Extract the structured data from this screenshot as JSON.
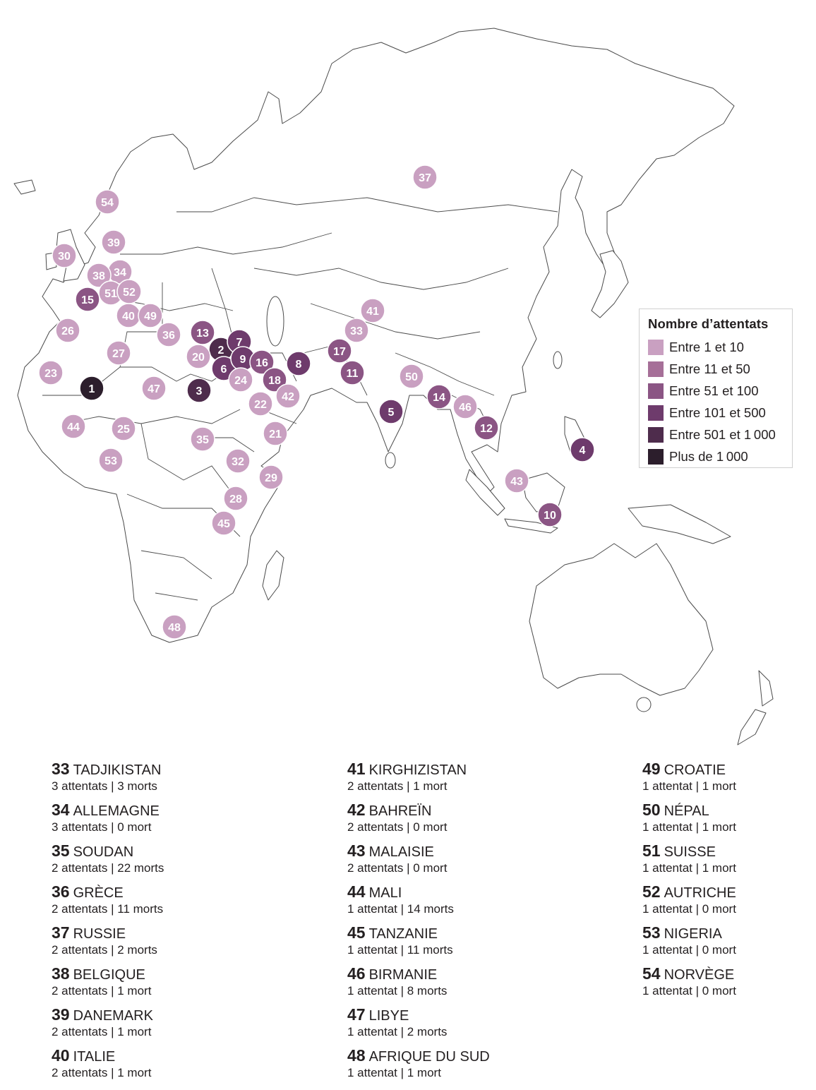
{
  "colors": {
    "c1": "#c9a0c1",
    "c2": "#a66f98",
    "c3": "#8b5584",
    "c4": "#6e3b6c",
    "c5": "#4e2c4c",
    "c6": "#2c1e2c"
  },
  "legend": {
    "title": "Nombre d’attentats",
    "items": [
      {
        "label": "Entre 1 et 10",
        "color": "#c9a0c1"
      },
      {
        "label": "Entre 11 et 50",
        "color": "#a66f98"
      },
      {
        "label": "Entre 51 et 100",
        "color": "#8b5584"
      },
      {
        "label": "Entre 101 et 500",
        "color": "#6e3b6c"
      },
      {
        "label": "Entre 501 et 1 000",
        "color": "#4e2c4c"
      },
      {
        "label": "Plus de 1 000",
        "color": "#2c1e2c"
      }
    ]
  },
  "markers": [
    {
      "n": "1",
      "cls": "c6"
    },
    {
      "n": "2",
      "cls": "c5"
    },
    {
      "n": "3",
      "cls": "c5"
    },
    {
      "n": "4",
      "cls": "c4"
    },
    {
      "n": "5",
      "cls": "c4"
    },
    {
      "n": "6",
      "cls": "c4"
    },
    {
      "n": "7",
      "cls": "c4"
    },
    {
      "n": "8",
      "cls": "c4"
    },
    {
      "n": "9",
      "cls": "c4"
    },
    {
      "n": "10",
      "cls": "c3"
    },
    {
      "n": "11",
      "cls": "c3"
    },
    {
      "n": "12",
      "cls": "c3"
    },
    {
      "n": "13",
      "cls": "c3"
    },
    {
      "n": "14",
      "cls": "c3"
    },
    {
      "n": "15",
      "cls": "c3"
    },
    {
      "n": "16",
      "cls": "c3"
    },
    {
      "n": "17",
      "cls": "c3"
    },
    {
      "n": "18",
      "cls": "c3"
    },
    {
      "n": "20",
      "cls": "c1"
    },
    {
      "n": "21",
      "cls": "c1"
    },
    {
      "n": "22",
      "cls": "c1"
    },
    {
      "n": "23",
      "cls": "c1"
    },
    {
      "n": "24",
      "cls": "c1"
    },
    {
      "n": "25",
      "cls": "c1"
    },
    {
      "n": "26",
      "cls": "c1"
    },
    {
      "n": "27",
      "cls": "c1"
    },
    {
      "n": "28",
      "cls": "c1"
    },
    {
      "n": "29",
      "cls": "c1"
    },
    {
      "n": "30",
      "cls": "c1"
    },
    {
      "n": "32",
      "cls": "c1"
    },
    {
      "n": "33",
      "cls": "c1"
    },
    {
      "n": "34",
      "cls": "c1"
    },
    {
      "n": "35",
      "cls": "c1"
    },
    {
      "n": "36",
      "cls": "c1"
    },
    {
      "n": "37",
      "cls": "c1"
    },
    {
      "n": "38",
      "cls": "c1"
    },
    {
      "n": "39",
      "cls": "c1"
    },
    {
      "n": "40",
      "cls": "c1"
    },
    {
      "n": "41",
      "cls": "c1"
    },
    {
      "n": "42",
      "cls": "c1"
    },
    {
      "n": "43",
      "cls": "c1"
    },
    {
      "n": "44",
      "cls": "c1"
    },
    {
      "n": "45",
      "cls": "c1"
    },
    {
      "n": "46",
      "cls": "c1"
    },
    {
      "n": "47",
      "cls": "c1"
    },
    {
      "n": "48",
      "cls": "c1"
    },
    {
      "n": "49",
      "cls": "c1"
    },
    {
      "n": "50",
      "cls": "c1"
    },
    {
      "n": "51",
      "cls": "c1"
    },
    {
      "n": "52",
      "cls": "c1"
    },
    {
      "n": "53",
      "cls": "c1"
    },
    {
      "n": "54",
      "cls": "c1"
    }
  ],
  "list": [
    [
      {
        "num": "33",
        "name": "TADJIKISTAN",
        "detail": "3 attentats | 3 morts"
      },
      {
        "num": "34",
        "name": "ALLEMAGNE",
        "detail": "3 attentats | 0 mort"
      },
      {
        "num": "35",
        "name": "SOUDAN",
        "detail": "2 attentats | 22 morts"
      },
      {
        "num": "36",
        "name": "GRÈCE",
        "detail": "2 attentats | 11 morts"
      },
      {
        "num": "37",
        "name": "RUSSIE",
        "detail": "2 attentats | 2 morts"
      },
      {
        "num": "38",
        "name": "BELGIQUE",
        "detail": "2 attentats | 1 mort"
      },
      {
        "num": "39",
        "name": "DANEMARK",
        "detail": "2 attentats | 1 mort"
      },
      {
        "num": "40",
        "name": "ITALIE",
        "detail": "2 attentats | 1 mort"
      }
    ],
    [
      {
        "num": "41",
        "name": "KIRGHIZISTAN",
        "detail": "2 attentats | 1 mort"
      },
      {
        "num": "42",
        "name": "BAHREÏN",
        "detail": "2 attentats | 0 mort"
      },
      {
        "num": "43",
        "name": "MALAISIE",
        "detail": "2 attentats | 0 mort"
      },
      {
        "num": "44",
        "name": "MALI",
        "detail": "1 attentat | 14 morts"
      },
      {
        "num": "45",
        "name": "TANZANIE",
        "detail": "1 attentat | 11 morts"
      },
      {
        "num": "46",
        "name": "BIRMANIE",
        "detail": "1 attentat | 8 morts"
      },
      {
        "num": "47",
        "name": "LIBYE",
        "detail": "1 attentat | 2 morts"
      },
      {
        "num": "48",
        "name": "AFRIQUE DU SUD",
        "detail": "1 attentat | 1 mort"
      }
    ],
    [
      {
        "num": "49",
        "name": "CROATIE",
        "detail": "1 attentat | 1 mort"
      },
      {
        "num": "50",
        "name": "NÉPAL",
        "detail": "1 attentat | 1 mort"
      },
      {
        "num": "51",
        "name": "SUISSE",
        "detail": "1 attentat | 1 mort"
      },
      {
        "num": "52",
        "name": "AUTRICHE",
        "detail": "1 attentat | 0 mort"
      },
      {
        "num": "53",
        "name": "NIGERIA",
        "detail": "1 attentat | 0 mort"
      },
      {
        "num": "54",
        "name": "NORVÈGE",
        "detail": "1 attentat | 0 mort"
      }
    ]
  ]
}
